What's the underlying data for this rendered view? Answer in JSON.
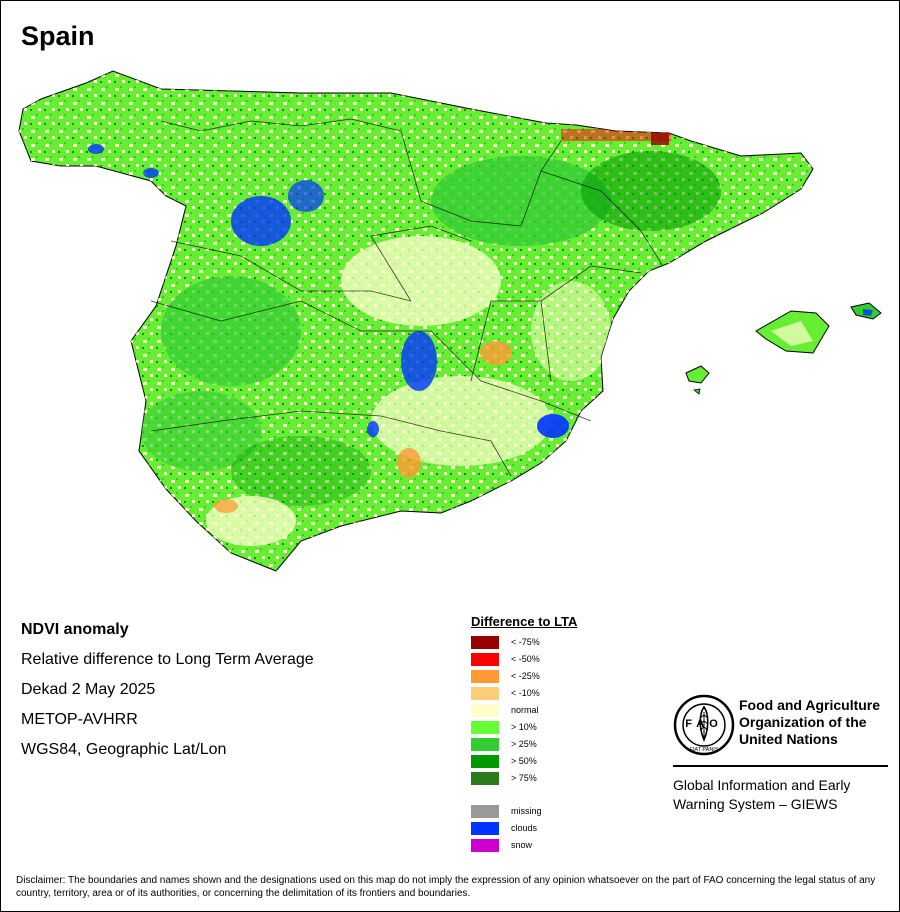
{
  "map": {
    "title": "Spain",
    "info_lines": [
      "NDVI anomaly",
      "Relative difference to Long Term Average",
      "Dekad 2 May 2025",
      "METOP-AVHRR",
      "WGS84, Geographic Lat/Lon"
    ]
  },
  "legend": {
    "title": "Difference to LTA",
    "classes": [
      {
        "label": "< -75%",
        "color": "#990000"
      },
      {
        "label": "< -50%",
        "color": "#ff0000"
      },
      {
        "label": "< -25%",
        "color": "#ff9933"
      },
      {
        "label": "< -10%",
        "color": "#ffcc77"
      },
      {
        "label": "normal",
        "color": "#ffffcc"
      },
      {
        "label": "> 10%",
        "color": "#66ff33"
      },
      {
        "label": "> 25%",
        "color": "#33cc33"
      },
      {
        "label": "> 50%",
        "color": "#009900"
      },
      {
        "label": "> 75%",
        "color": "#2d7a1a"
      }
    ],
    "other": [
      {
        "label": "missing",
        "color": "#999999"
      },
      {
        "label": "clouds",
        "color": "#0033ff"
      },
      {
        "label": "snow",
        "color": "#cc00cc"
      }
    ]
  },
  "org": {
    "logo_letters": "FAO",
    "logo_motto": "FIAT PANIS",
    "name_lines": [
      "Food and Agriculture",
      "Organization of the",
      "United Nations"
    ],
    "system_lines": [
      "Global Information and Early",
      "Warning System – GIEWS"
    ]
  },
  "disclaimer": "Disclaimer: The boundaries and names shown and the designations used on this map do not imply the expression of any opinion whatsoever on the part of FAO concerning the legal status of any country, territory, area or of its authorities, or concerning the delimitation of its frontiers and boundaries."
}
